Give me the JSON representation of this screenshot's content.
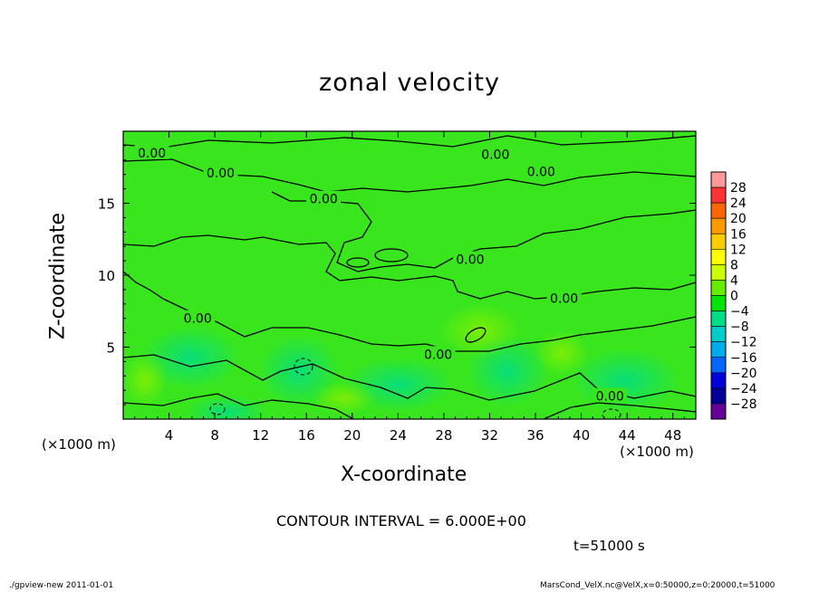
{
  "chart_data": {
    "type": "heatmap",
    "title": "zonal velocity",
    "xlabel": "X-coordinate",
    "ylabel": "Z-coordinate",
    "x_unit_label": "(×1000 m)",
    "y_unit_label": "(×1000 m)",
    "xlim": [
      0,
      50
    ],
    "ylim": [
      0,
      20
    ],
    "x_ticks": [
      4,
      8,
      12,
      16,
      20,
      24,
      28,
      32,
      36,
      40,
      44,
      48
    ],
    "y_ticks": [
      5,
      10,
      15
    ],
    "contour_interval_text": "CONTOUR INTERVAL = 6.000E+00",
    "contour_labels": [
      {
        "text": "0.00",
        "x": 2.5,
        "y": 18.5
      },
      {
        "text": "0.00",
        "x": 8.5,
        "y": 17.1
      },
      {
        "text": "0.00",
        "x": 17.5,
        "y": 15.3
      },
      {
        "text": "0.00",
        "x": 32.5,
        "y": 18.4
      },
      {
        "text": "0.00",
        "x": 36.5,
        "y": 17.2
      },
      {
        "text": "0.00",
        "x": 30.3,
        "y": 11.1
      },
      {
        "text": "0.00",
        "x": 38.5,
        "y": 8.4
      },
      {
        "text": "0.00",
        "x": 6.5,
        "y": 7.0
      },
      {
        "text": "0.00",
        "x": 27.5,
        "y": 4.5
      },
      {
        "text": "0.00",
        "x": 42.5,
        "y": 1.6
      }
    ],
    "colorbar": {
      "levels": [
        "28",
        "24",
        "20",
        "16",
        "12",
        "8",
        "4",
        "0",
        "−4",
        "−8",
        "−12",
        "−16",
        "−20",
        "−24",
        "−28"
      ],
      "colors": [
        "#ff9999",
        "#ff3333",
        "#ff6600",
        "#ff9900",
        "#ffcc00",
        "#ffff00",
        "#ccff00",
        "#66ee00",
        "#00e600",
        "#00dd88",
        "#00cccc",
        "#00aaee",
        "#0066ff",
        "#0000dd",
        "#000099",
        "#660099"
      ]
    },
    "field": {
      "background_color": "#39e61e",
      "value_range_visible": [
        -8,
        6
      ]
    },
    "time_text": "t=51000 s"
  },
  "footer": {
    "left": "./gpview-new  2011-01-01",
    "right": "MarsCond_VelX.nc@VelX,x=0:50000,z=0:20000,t=51000"
  }
}
